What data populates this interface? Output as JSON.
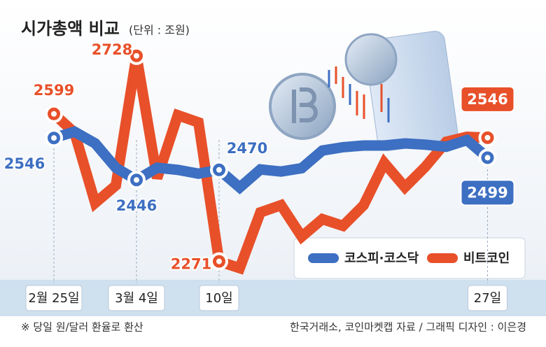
{
  "chart_data": {
    "type": "line",
    "title": "시가총액 비교",
    "subtitle": "(단위 : 조원)",
    "categories": [
      "2월 25일",
      null,
      null,
      null,
      "3월 4일",
      null,
      null,
      null,
      "10일",
      null,
      null,
      null,
      null,
      null,
      null,
      null,
      null,
      null,
      null,
      null,
      null,
      "27일"
    ],
    "series": [
      {
        "name": "코스피·코스닥",
        "color": "#3d6fc2",
        "values": [
          2546,
          2561,
          2533,
          2475,
          2446,
          2475,
          2470,
          2461,
          2470,
          2428,
          2471,
          2466,
          2474,
          2516,
          2524,
          2528,
          2528,
          2533,
          2530,
          2525,
          2541,
          2499
        ],
        "value_labels": [
          "2546",
          null,
          null,
          null,
          "2446",
          null,
          null,
          null,
          "2470",
          null,
          null,
          null,
          null,
          null,
          null,
          null,
          null,
          null,
          null,
          null,
          null,
          "2499"
        ]
      },
      {
        "name": "비트코인",
        "color": "#e8502a",
        "axis": "y2",
        "values": [
          2599,
          2557,
          2401,
          2440,
          2728,
          2456,
          2596,
          2580,
          2271,
          2256,
          2380,
          2396,
          2326,
          2365,
          2350,
          2396,
          2490,
          2436,
          2482,
          2537,
          2548,
          2546
        ],
        "value_labels": [
          "2599",
          null,
          null,
          null,
          "2728",
          null,
          null,
          null,
          "2271",
          null,
          null,
          null,
          null,
          null,
          null,
          null,
          null,
          null,
          null,
          null,
          null,
          "2546"
        ]
      }
    ],
    "ylim": [
      2208,
      2808
    ],
    "y2lim": [
      2230,
      2790
    ],
    "note": "※ 당일 원/달러 환율로 환산",
    "source": "한국거래소, 코인마켓캡 자료 / 그래픽 디자인 : 이은경"
  }
}
